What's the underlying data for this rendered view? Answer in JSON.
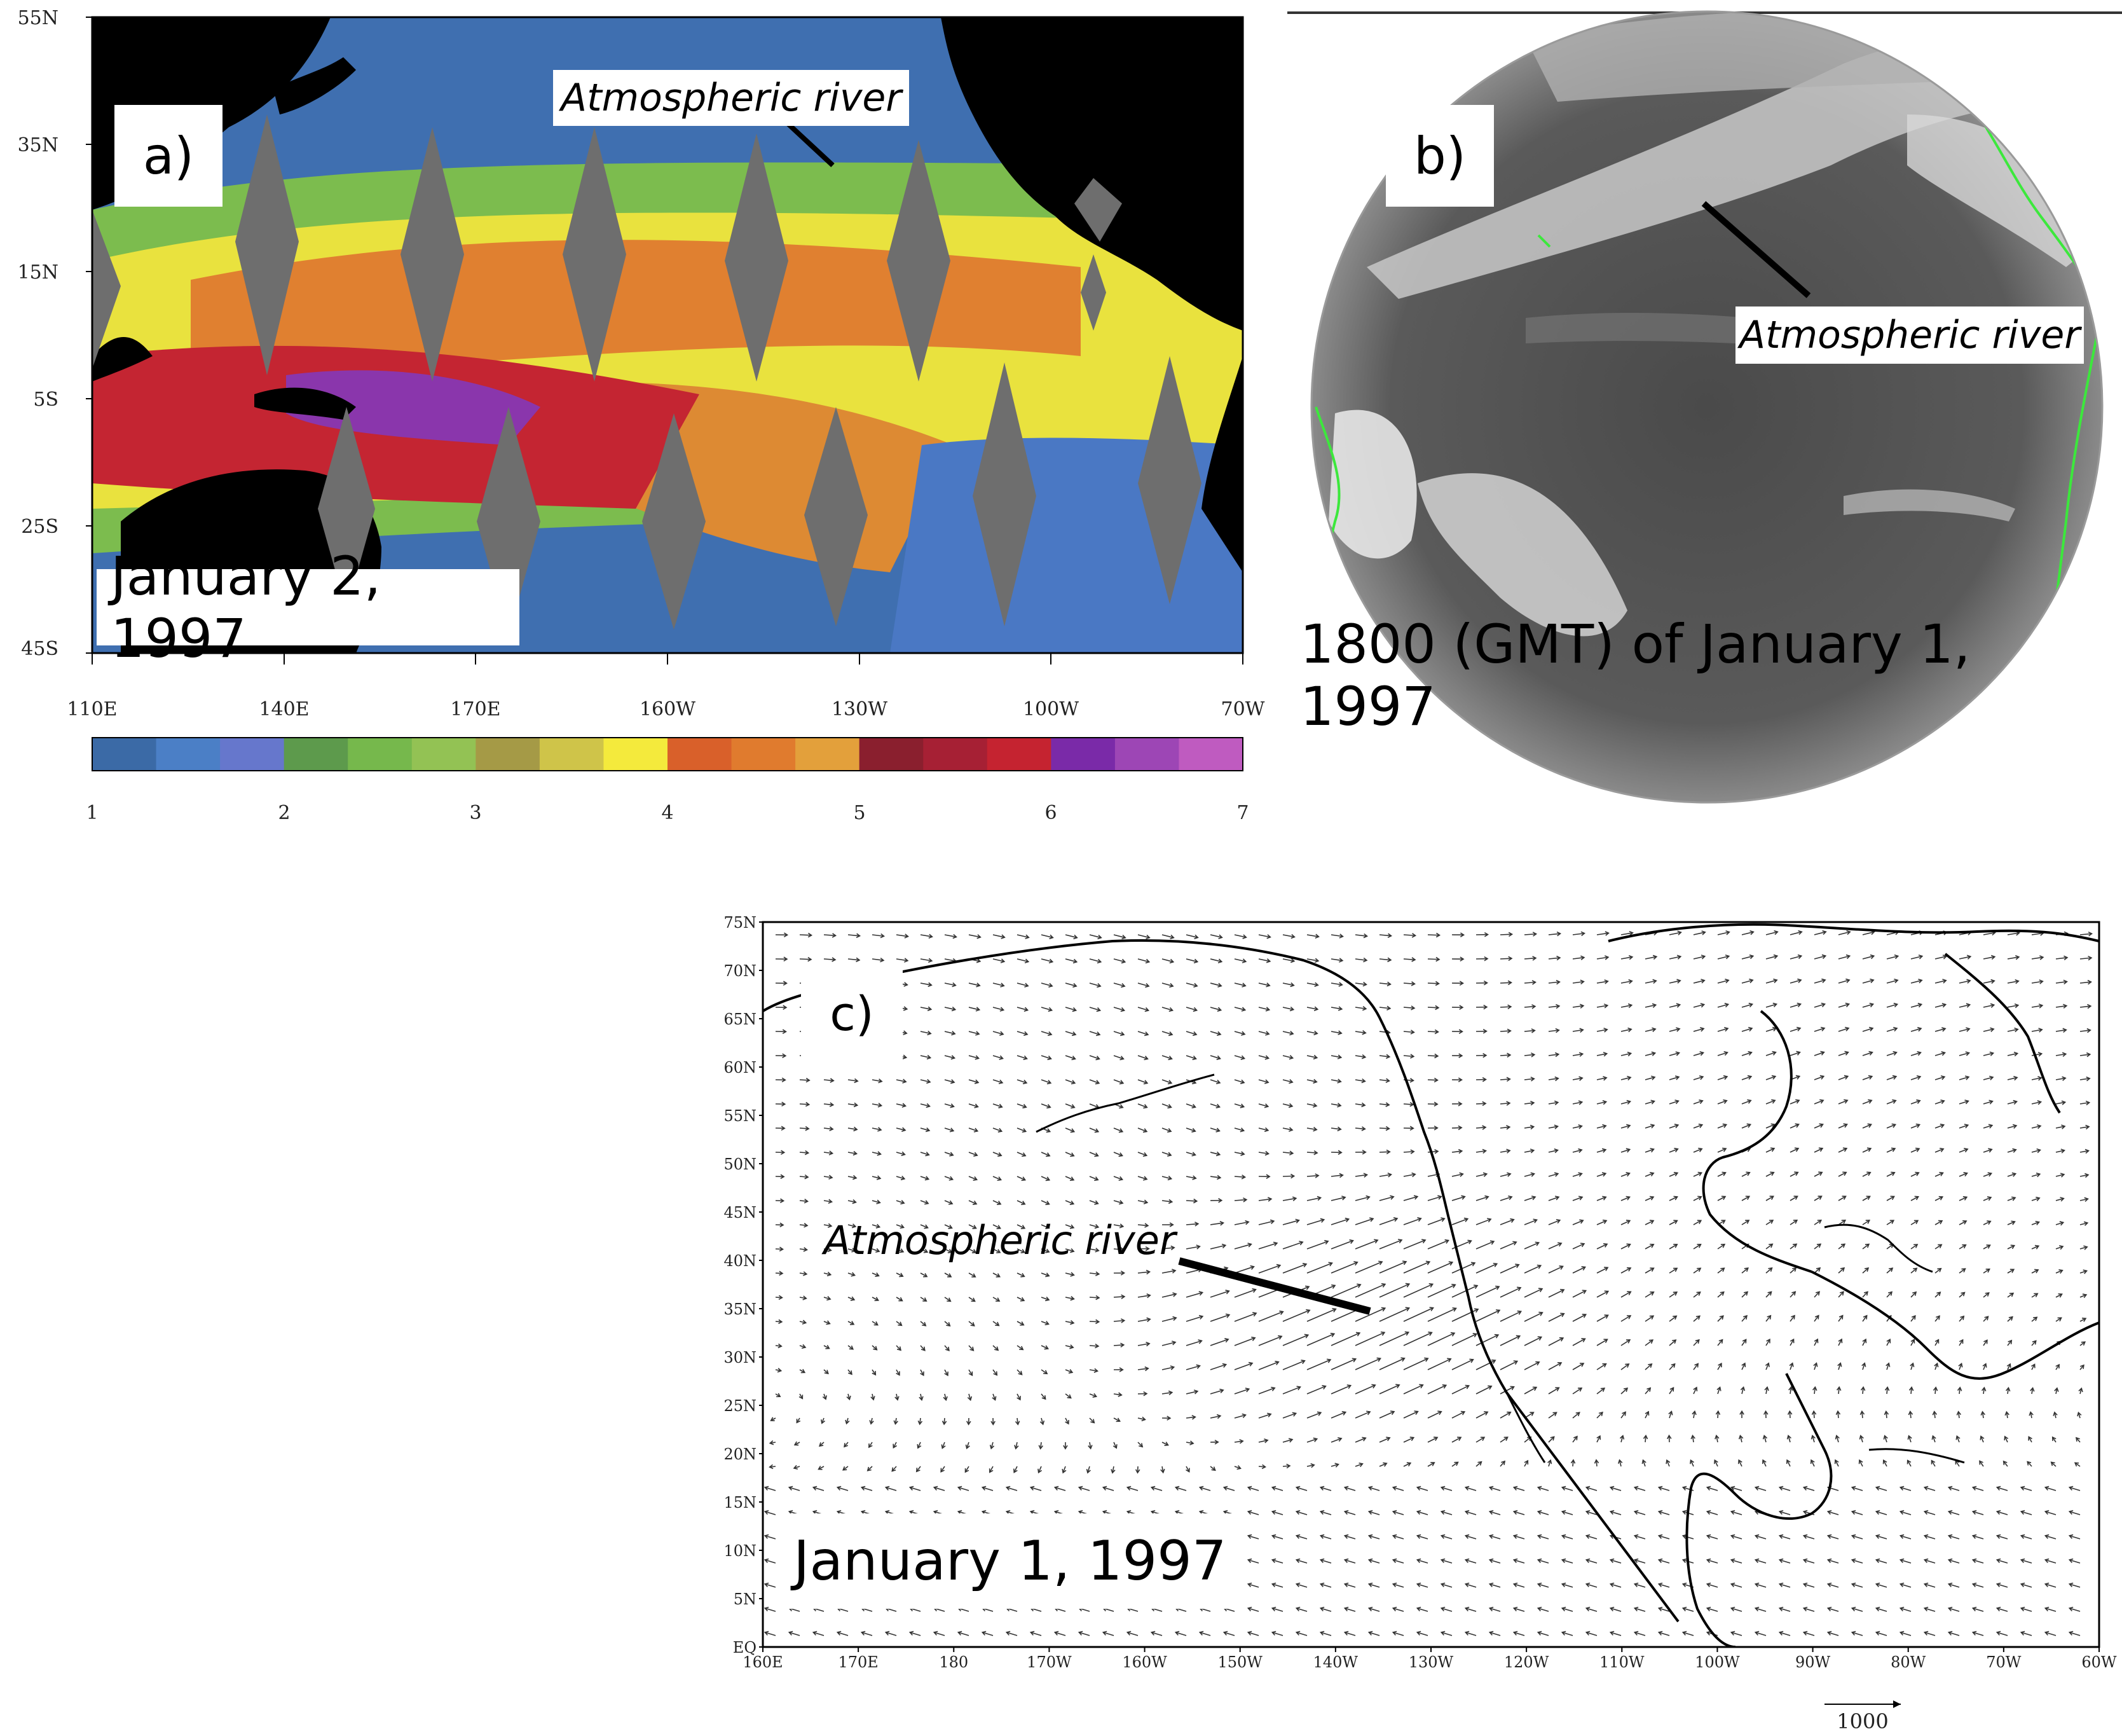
{
  "panels": {
    "a": {
      "label": "a)",
      "date": "January 2, 1997",
      "annotation": "Atmospheric river",
      "lat_ticks": [
        "55N",
        "35N",
        "15N",
        "5S",
        "25S",
        "45S"
      ],
      "lon_ticks": [
        "110E",
        "140E",
        "170E",
        "160W",
        "130W",
        "100W",
        "70W"
      ],
      "colorbar": {
        "ticks": [
          "1",
          "2",
          "3",
          "4",
          "5",
          "6",
          "7"
        ],
        "colors": [
          "#3b6aa6",
          "#4b7fc6",
          "#6677cc",
          "#5d9a4c",
          "#76b84c",
          "#93c254",
          "#a59a46",
          "#cfc449",
          "#f4ea3c",
          "#d9602a",
          "#e07b2e",
          "#e3a03b",
          "#8a1f2e",
          "#a62034",
          "#c52330",
          "#7a2aa8",
          "#9d46b5",
          "#bf5bc0"
        ]
      },
      "colors": {
        "land": "#000000",
        "gap": "#6e6e6e",
        "ocean_low": "#4b7fc6"
      }
    },
    "b": {
      "label": "b)",
      "annotation": "Atmospheric river",
      "caption": "1800 (GMT) of January 1, 1997",
      "colors": {
        "coast": "#3ce83c",
        "disk": "#5b5b5b"
      }
    },
    "c": {
      "label": "c)",
      "date": "January 1, 1997",
      "annotation": "Atmospheric river",
      "lat_ticks": [
        "75N",
        "70N",
        "65N",
        "60N",
        "55N",
        "50N",
        "45N",
        "40N",
        "35N",
        "30N",
        "25N",
        "20N",
        "15N",
        "10N",
        "5N",
        "EQ"
      ],
      "lon_ticks": [
        "160E",
        "170E",
        "180",
        "170W",
        "160W",
        "150W",
        "140W",
        "130W",
        "120W",
        "110W",
        "100W",
        "90W",
        "80W",
        "70W",
        "60W"
      ],
      "reference_vector": "1000"
    }
  }
}
